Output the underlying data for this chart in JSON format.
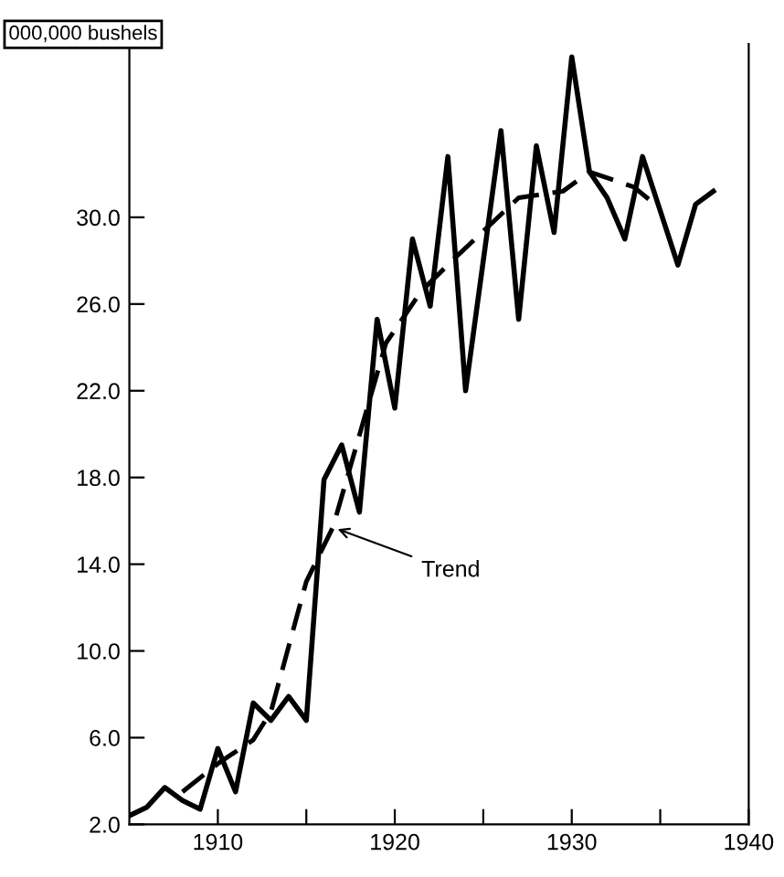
{
  "chart_data": {
    "type": "line",
    "ylabel": "000,000 bushels",
    "xlim": [
      1905,
      1940
    ],
    "ylim": [
      2,
      38
    ],
    "xticks": [
      1910,
      {
        "value": 1915,
        "label": null
      },
      1920,
      {
        "value": 1925,
        "label": null
      },
      1930,
      {
        "value": 1935,
        "label": null
      },
      1940
    ],
    "yticks": [
      {
        "value": 2,
        "label": "2.0"
      },
      {
        "value": 6,
        "label": "6.0"
      },
      {
        "value": 10,
        "label": "10.0"
      },
      {
        "value": 14,
        "label": "14.0"
      },
      {
        "value": 18,
        "label": "18.0"
      },
      {
        "value": 22,
        "label": "22.0"
      },
      {
        "value": 26,
        "label": "26.0"
      },
      {
        "value": 30,
        "label": "30.0"
      }
    ],
    "grid": false,
    "legend": false,
    "marker": "none",
    "series": [
      {
        "color": "#000000",
        "line_style": "solid",
        "x": [
          1905,
          1906,
          1907,
          1908,
          1909,
          1910,
          1911,
          1912,
          1913,
          1914,
          1915,
          1916,
          1917,
          1918,
          1919,
          1920,
          1921,
          1922,
          1923,
          1924,
          1925,
          1926,
          1927,
          1928,
          1929,
          1930,
          1931,
          1932,
          1933,
          1934,
          1935,
          1936,
          1937,
          1938
        ],
        "values": [
          2.4,
          2.8,
          3.7,
          3.1,
          2.7,
          5.5,
          3.5,
          7.6,
          6.8,
          7.9,
          6.8,
          17.9,
          19.5,
          16.4,
          25.3,
          21.2,
          29.0,
          25.9,
          32.8,
          22.0,
          28.0,
          34.0,
          25.3,
          33.3,
          29.3,
          37.4,
          32.1,
          30.9,
          29.0,
          32.8,
          30.3,
          27.8,
          30.6,
          31.2
        ]
      },
      {
        "color": "#000000",
        "line_style": "dashed",
        "x": [
          1908,
          1910,
          1912,
          1913,
          1915,
          1916.5,
          1919.5,
          1921.5,
          1923.5,
          1927,
          1929.5,
          1931,
          1933.5,
          1935
        ],
        "values": [
          3.5,
          4.8,
          5.9,
          7.2,
          13.2,
          15.7,
          24.2,
          26.6,
          28.2,
          30.9,
          31.2,
          32.1,
          31.4,
          30.4
        ]
      }
    ],
    "annotations": [
      {
        "text": "Trend",
        "x": 1916.5,
        "y": 15.7
      }
    ]
  }
}
